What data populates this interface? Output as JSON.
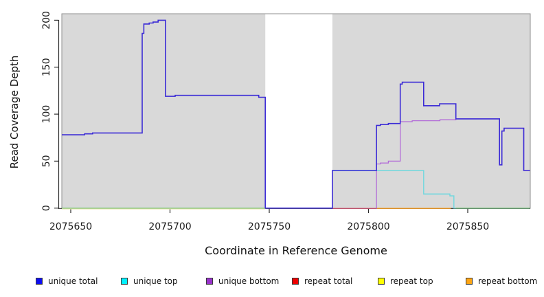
{
  "chart_data": {
    "type": "line",
    "title": "",
    "xlabel": "Coordinate in Reference Genome",
    "ylabel": "Read Coverage Depth",
    "x_ticks": [
      2075650,
      2075700,
      2075750,
      2075800,
      2075850
    ],
    "y_ticks": [
      0,
      50,
      100,
      150,
      200
    ],
    "xlim": [
      2075645.5,
      2075881.3
    ],
    "ylim": [
      0,
      207
    ],
    "grid": "off",
    "legend_position": "bottom",
    "panel_color": "#d9d9d9",
    "panel_border_color": "#8f8f8f",
    "gap_region": [
      2075748,
      2075781.8
    ],
    "axis_color": "#2b2b2b",
    "text_color": "#1a1a1a",
    "legend": [
      {
        "label": "unique total",
        "swatch": "#0d0df2"
      },
      {
        "label": "unique top",
        "swatch": "#00f0ff"
      },
      {
        "label": "unique bottom",
        "swatch": "#9932cc"
      },
      {
        "label": "repeat total",
        "swatch": "#ee0000"
      },
      {
        "label": "repeat top",
        "swatch": "#ffff00"
      },
      {
        "label": "repeat bottom",
        "swatch": "#ffa513"
      }
    ],
    "series": [
      {
        "name": "repeat top",
        "color": "#e9e6ad",
        "width": 1.4,
        "y_offset": 1.1,
        "steps": [
          [
            2075645.5,
            0
          ]
        ],
        "end": 2075748
      },
      {
        "name": "repeat total",
        "color": "#d84f70",
        "width": 1.3,
        "y_offset": 0.4,
        "steps": [
          [
            2075781.8,
            0
          ]
        ],
        "end": 2075804
      },
      {
        "name": "repeat bottom",
        "color": "#ff9f1a",
        "width": 1.4,
        "y_offset": 0.4,
        "steps": [
          [
            2075804,
            0
          ]
        ],
        "end": 2075841.5
      },
      {
        "name": "unique top",
        "color": "#6fd8de",
        "width": 1.4,
        "y_offset": 0,
        "steps": [
          [
            2075781.8,
            40
          ],
          [
            2075827.8,
            15
          ],
          [
            2075841,
            13
          ],
          [
            2075843,
            0
          ]
        ],
        "end": 2075881.3
      },
      {
        "name": "zero coverage left",
        "color": "#7cc87c",
        "width": 1.3,
        "y_offset": 0,
        "steps": [
          [
            2075645.5,
            0
          ]
        ],
        "end": 2075748
      },
      {
        "name": "zero coverage right",
        "color": "#7cc87c",
        "width": 1.3,
        "y_offset": 0,
        "steps": [
          [
            2075844,
            0
          ]
        ],
        "end": 2075881.3
      },
      {
        "name": "unique bottom",
        "color": "#b26bd8",
        "width": 1.3,
        "y_offset": 0,
        "steps": [
          [
            2075803.6,
            0
          ],
          [
            2075804,
            47
          ],
          [
            2075806,
            48
          ],
          [
            2075810,
            50
          ],
          [
            2075816,
            92
          ],
          [
            2075822,
            93
          ],
          [
            2075836,
            94
          ],
          [
            2075844,
            95
          ],
          [
            2075866,
            46
          ],
          [
            2075867.2,
            82
          ],
          [
            2075868.3,
            85
          ],
          [
            2075878.2,
            40
          ]
        ],
        "end": 2075881.3
      },
      {
        "name": "unique total",
        "color": "#3b2bd6",
        "width": 1.6,
        "y_offset": 0,
        "steps": [
          [
            2075645.5,
            78
          ],
          [
            2075657,
            79
          ],
          [
            2075661,
            80
          ],
          [
            2075686,
            186
          ],
          [
            2075686.8,
            196
          ],
          [
            2075689.5,
            197
          ],
          [
            2075691.5,
            198
          ],
          [
            2075694,
            200
          ],
          [
            2075697.7,
            119
          ],
          [
            2075702.6,
            120
          ],
          [
            2075744.7,
            118
          ],
          [
            2075748,
            0
          ],
          [
            2075781.8,
            40
          ],
          [
            2075804,
            88
          ],
          [
            2075806,
            89
          ],
          [
            2075810,
            90
          ],
          [
            2075816,
            132
          ],
          [
            2075817,
            134
          ],
          [
            2075827.8,
            109
          ],
          [
            2075835.8,
            111
          ],
          [
            2075844,
            95
          ],
          [
            2075866,
            46
          ],
          [
            2075867.2,
            82
          ],
          [
            2075868.3,
            85
          ],
          [
            2075878.2,
            40
          ]
        ],
        "end": 2075881.3
      }
    ]
  }
}
